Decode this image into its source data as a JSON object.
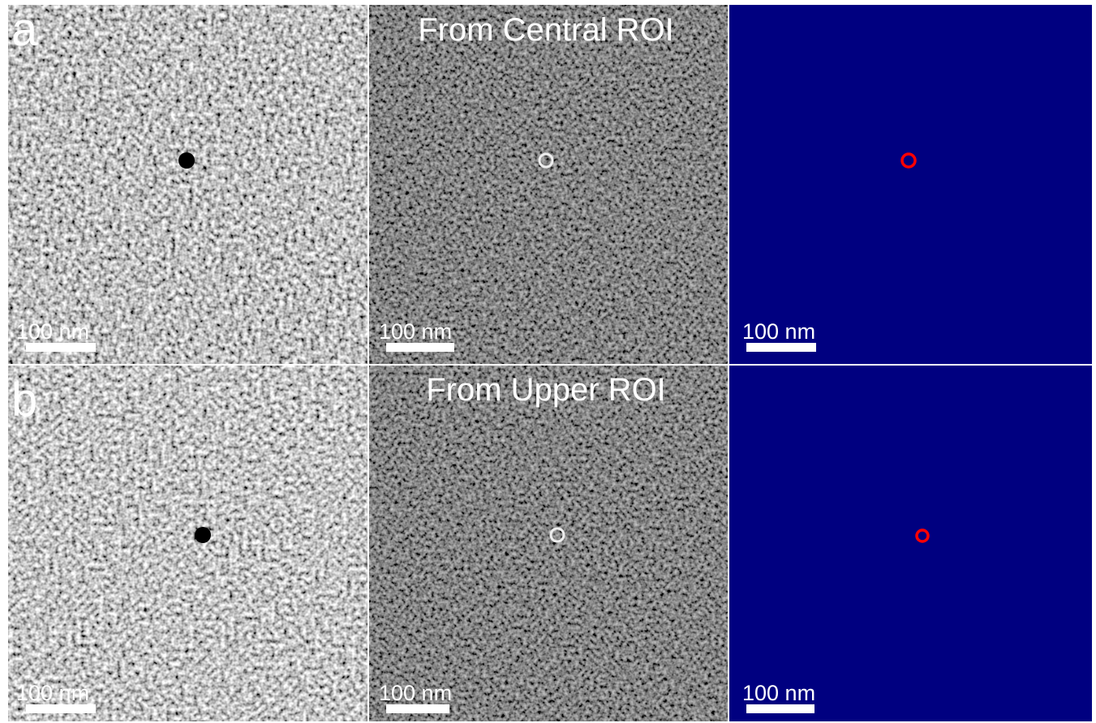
{
  "rows": [
    {
      "label": "a",
      "title": "From Central ROI",
      "scale_bars": [
        "100 nm",
        "100 nm",
        "100 nm"
      ]
    },
    {
      "label": "b",
      "title": "From Upper ROI",
      "scale_bars": [
        "100 nm",
        "100 nm",
        "100 nm"
      ]
    }
  ]
}
